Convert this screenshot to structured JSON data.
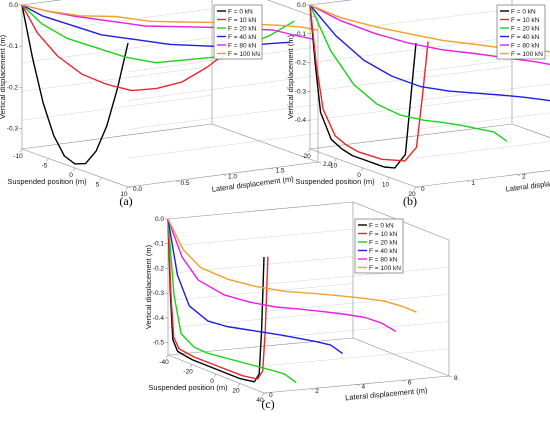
{
  "figure": {
    "series_names": [
      "F = 0 kN",
      "F = 10 kN",
      "F = 20 kN",
      "F = 40 kN",
      "F = 80 kN",
      "F = 100 kN"
    ],
    "series_colors": [
      "#000000",
      "#e8272c",
      "#18d318",
      "#1e1ee6",
      "#e61ee6",
      "#f2a02a"
    ]
  },
  "chart_data": [
    {
      "type": "line",
      "panel_label": "(a)",
      "xlabel": "Suspended position (m)",
      "ylabel": "Lateral displacement (m)",
      "zlabel": "Vertical displacement (m)",
      "x_ticks": [
        "-10",
        "-5",
        "0",
        "5",
        "10"
      ],
      "y_ticks": [
        "0.0",
        "0.5",
        "1.0",
        "1.5",
        "2.0"
      ],
      "z_ticks": [
        "0.0",
        "-0.1",
        "-0.2",
        "-0.3"
      ],
      "xlim": [
        -10,
        10
      ],
      "ylim": [
        0,
        2
      ],
      "zlim": [
        -0.35,
        0
      ],
      "series": [
        {
          "name": "F = 0 kN",
          "x": [
            -10,
            -8,
            -6,
            -4,
            -2,
            0,
            2,
            4,
            6,
            8,
            10
          ],
          "y": [
            0,
            0,
            0,
            0,
            0,
            0,
            0,
            0,
            0,
            0,
            0
          ],
          "z": [
            0,
            -0.12,
            -0.22,
            -0.29,
            -0.33,
            -0.34,
            -0.33,
            -0.29,
            -0.22,
            -0.12,
            0
          ]
        },
        {
          "name": "F = 10 kN",
          "x": [
            -10,
            -8,
            -6,
            -4,
            -2,
            0,
            2,
            4,
            6,
            8,
            10
          ],
          "y": [
            0,
            0.05,
            0.15,
            0.3,
            0.45,
            0.6,
            0.75,
            0.9,
            1.05,
            1.2,
            1.35
          ],
          "z": [
            0,
            -0.06,
            -0.11,
            -0.15,
            -0.17,
            -0.18,
            -0.17,
            -0.15,
            -0.11,
            -0.06,
            0
          ]
        },
        {
          "name": "F = 20 kN",
          "x": [
            -10,
            -8,
            -6,
            -4,
            -2,
            0,
            2,
            4,
            6,
            8,
            10
          ],
          "y": [
            0,
            0.1,
            0.25,
            0.45,
            0.65,
            0.85,
            1.05,
            1.25,
            1.45,
            1.6,
            1.75
          ],
          "z": [
            0,
            -0.04,
            -0.07,
            -0.09,
            -0.11,
            -0.12,
            -0.11,
            -0.1,
            -0.07,
            -0.04,
            0
          ]
        },
        {
          "name": "F = 40 kN",
          "x": [
            -10,
            -8,
            -6,
            -4,
            -2,
            0,
            2,
            4,
            6,
            8,
            10
          ],
          "y": [
            0,
            0.1,
            0.3,
            0.5,
            0.75,
            1.0,
            1.2,
            1.4,
            1.55,
            1.65,
            1.7
          ],
          "z": [
            0,
            -0.02,
            -0.04,
            -0.06,
            -0.07,
            -0.08,
            -0.08,
            -0.08,
            -0.07,
            -0.06,
            -0.05
          ]
        },
        {
          "name": "F = 80 kN",
          "x": [
            -10,
            -8,
            -6,
            -4,
            -2,
            0,
            2,
            4,
            6,
            8,
            10
          ],
          "y": [
            0,
            0.15,
            0.35,
            0.6,
            0.85,
            1.1,
            1.35,
            1.55,
            1.75,
            1.9,
            1.95
          ],
          "z": [
            0,
            -0.01,
            -0.02,
            -0.03,
            -0.04,
            -0.04,
            -0.04,
            -0.04,
            -0.04,
            -0.05,
            -0.05
          ]
        },
        {
          "name": "F = 100 kN",
          "x": [
            -10,
            -8,
            -6,
            -4,
            -2,
            0,
            2,
            4,
            6,
            8,
            10
          ],
          "y": [
            0,
            0.15,
            0.4,
            0.65,
            0.9,
            1.15,
            1.4,
            1.6,
            1.8,
            1.95,
            2.0
          ],
          "z": [
            0,
            -0.01,
            -0.02,
            -0.02,
            -0.03,
            -0.03,
            -0.03,
            -0.03,
            -0.03,
            -0.03,
            -0.03
          ]
        }
      ]
    },
    {
      "type": "line",
      "panel_label": "(b)",
      "xlabel": "Suspended position (m)",
      "ylabel": "Lateral displacement (m)",
      "zlabel": "Vertical displacement (m)",
      "x_ticks": [
        "-20",
        "-10",
        "0",
        "10",
        "20"
      ],
      "y_ticks": [
        "0",
        "1",
        "2",
        "3",
        "4"
      ],
      "z_ticks": [
        "0.0",
        "-0.1",
        "-0.2",
        "-0.3",
        "-0.4"
      ],
      "xlim": [
        -20,
        20
      ],
      "ylim": [
        0,
        4
      ],
      "zlim": [
        -0.5,
        0
      ],
      "series": [
        {
          "name": "F = 0 kN",
          "x": [
            -20,
            -18,
            -16,
            -12,
            -8,
            -4,
            0,
            4,
            8,
            12,
            16,
            18,
            20
          ],
          "y": [
            0,
            0,
            0,
            0,
            0,
            0,
            0,
            0,
            0,
            0,
            0,
            0,
            0
          ],
          "z": [
            0,
            -0.2,
            -0.36,
            -0.44,
            -0.46,
            -0.47,
            -0.47,
            -0.47,
            -0.47,
            -0.46,
            -0.4,
            -0.2,
            0
          ]
        },
        {
          "name": "F = 10 kN",
          "x": [
            -20,
            -18,
            -16,
            -12,
            -8,
            -4,
            0,
            4,
            8,
            12,
            16,
            18,
            20
          ],
          "y": [
            0,
            0.02,
            0.05,
            0.08,
            0.1,
            0.12,
            0.14,
            0.16,
            0.18,
            0.2,
            0.22,
            0.23,
            0.24
          ],
          "z": [
            0,
            -0.2,
            -0.35,
            -0.43,
            -0.45,
            -0.46,
            -0.46,
            -0.46,
            -0.45,
            -0.44,
            -0.38,
            -0.2,
            0
          ]
        },
        {
          "name": "F = 20 kN",
          "x": [
            -20,
            -16,
            -12,
            -8,
            -4,
            0,
            4,
            8,
            12,
            16,
            20
          ],
          "y": [
            0,
            0.2,
            0.45,
            0.7,
            0.95,
            1.2,
            1.4,
            1.55,
            1.65,
            1.75,
            1.8
          ],
          "z": [
            0,
            -0.15,
            -0.26,
            -0.32,
            -0.35,
            -0.36,
            -0.36,
            -0.36,
            -0.36,
            -0.36,
            -0.38
          ]
        },
        {
          "name": "F = 40 kN",
          "x": [
            -20,
            -16,
            -12,
            -8,
            -4,
            0,
            4,
            8,
            12,
            16,
            20
          ],
          "y": [
            0,
            0.3,
            0.65,
            1.0,
            1.35,
            1.7,
            2.0,
            2.3,
            2.55,
            2.75,
            2.9
          ],
          "z": [
            0,
            -0.1,
            -0.18,
            -0.23,
            -0.26,
            -0.27,
            -0.27,
            -0.27,
            -0.27,
            -0.27,
            -0.27
          ]
        },
        {
          "name": "F = 80 kN",
          "x": [
            -20,
            -16,
            -12,
            -8,
            -4,
            0,
            4,
            8,
            12,
            16,
            20
          ],
          "y": [
            0,
            0.4,
            0.85,
            1.3,
            1.75,
            2.2,
            2.6,
            3.0,
            3.3,
            3.55,
            3.7
          ],
          "z": [
            0,
            -0.05,
            -0.09,
            -0.12,
            -0.14,
            -0.15,
            -0.16,
            -0.17,
            -0.18,
            -0.19,
            -0.2
          ]
        },
        {
          "name": "F = 100 kN",
          "x": [
            -20,
            -16,
            -12,
            -8,
            -4,
            0,
            4,
            8,
            12,
            16,
            20
          ],
          "y": [
            0,
            0.4,
            0.9,
            1.35,
            1.8,
            2.25,
            2.65,
            3.05,
            3.4,
            3.65,
            3.8
          ],
          "z": [
            0,
            -0.04,
            -0.07,
            -0.09,
            -0.11,
            -0.12,
            -0.13,
            -0.13,
            -0.14,
            -0.15,
            -0.15
          ]
        }
      ]
    },
    {
      "type": "line",
      "panel_label": "(c)",
      "xlabel": "Suspended position (m)",
      "ylabel": "Lateral displacement (m)",
      "zlabel": "Vertical displacement (m)",
      "x_ticks": [
        "-40",
        "-20",
        "0",
        "20",
        "40"
      ],
      "y_ticks": [
        "0",
        "2",
        "4",
        "6",
        "8"
      ],
      "z_ticks": [
        "0.0",
        "-0.1",
        "-0.2",
        "-0.3",
        "-0.4",
        "-0.5"
      ],
      "xlim": [
        -40,
        40
      ],
      "ylim": [
        0,
        8
      ],
      "zlim": [
        -0.55,
        0
      ],
      "series": [
        {
          "name": "F = 0 kN",
          "x": [
            -40,
            -38,
            -36,
            -32,
            -20,
            0,
            20,
            32,
            36,
            38,
            40
          ],
          "y": [
            0,
            0,
            0,
            0,
            0,
            0,
            0,
            0,
            0,
            0,
            0
          ],
          "z": [
            0,
            -0.3,
            -0.48,
            -0.52,
            -0.53,
            -0.53,
            -0.53,
            -0.52,
            -0.48,
            -0.3,
            0
          ]
        },
        {
          "name": "F = 10 kN",
          "x": [
            -40,
            -38,
            -36,
            -32,
            -20,
            0,
            20,
            32,
            36,
            38,
            40
          ],
          "y": [
            0,
            0.02,
            0.04,
            0.06,
            0.08,
            0.1,
            0.12,
            0.14,
            0.15,
            0.16,
            0.17
          ],
          "z": [
            0,
            -0.3,
            -0.47,
            -0.51,
            -0.52,
            -0.52,
            -0.52,
            -0.51,
            -0.47,
            -0.3,
            0
          ]
        },
        {
          "name": "F = 20 kN",
          "x": [
            -40,
            -36,
            -32,
            -24,
            -16,
            -8,
            0,
            8,
            16,
            24,
            32,
            40
          ],
          "y": [
            0,
            0.05,
            0.15,
            0.3,
            0.45,
            0.6,
            0.75,
            0.9,
            1.05,
            1.2,
            1.3,
            1.4
          ],
          "z": [
            0,
            -0.3,
            -0.45,
            -0.49,
            -0.5,
            -0.5,
            -0.5,
            -0.5,
            -0.5,
            -0.5,
            -0.5,
            -0.52
          ]
        },
        {
          "name": "F = 40 kN",
          "x": [
            -40,
            -36,
            -32,
            -24,
            -16,
            -8,
            0,
            8,
            16,
            24,
            32,
            40
          ],
          "y": [
            0,
            0.2,
            0.5,
            0.9,
            1.3,
            1.7,
            2.1,
            2.5,
            2.8,
            3.1,
            3.3,
            3.4
          ],
          "z": [
            0,
            -0.22,
            -0.34,
            -0.39,
            -0.4,
            -0.4,
            -0.4,
            -0.4,
            -0.4,
            -0.4,
            -0.4,
            -0.42
          ]
        },
        {
          "name": "F = 80 kN",
          "x": [
            -40,
            -36,
            -32,
            -24,
            -16,
            -8,
            0,
            8,
            16,
            24,
            32,
            40
          ],
          "y": [
            0,
            0.4,
            0.9,
            1.6,
            2.3,
            3.0,
            3.7,
            4.3,
            4.8,
            5.2,
            5.5,
            5.7
          ],
          "z": [
            0,
            -0.15,
            -0.24,
            -0.29,
            -0.31,
            -0.32,
            -0.32,
            -0.32,
            -0.32,
            -0.32,
            -0.33,
            -0.35
          ]
        },
        {
          "name": "F = 100 kN",
          "x": [
            -40,
            -36,
            -32,
            -24,
            -16,
            -8,
            0,
            8,
            16,
            24,
            32,
            40
          ],
          "y": [
            0,
            0.45,
            1.0,
            1.8,
            2.6,
            3.4,
            4.2,
            4.9,
            5.5,
            6.0,
            6.4,
            6.6
          ],
          "z": [
            0,
            -0.12,
            -0.19,
            -0.23,
            -0.25,
            -0.26,
            -0.26,
            -0.26,
            -0.26,
            -0.26,
            -0.27,
            -0.28
          ]
        }
      ]
    }
  ]
}
